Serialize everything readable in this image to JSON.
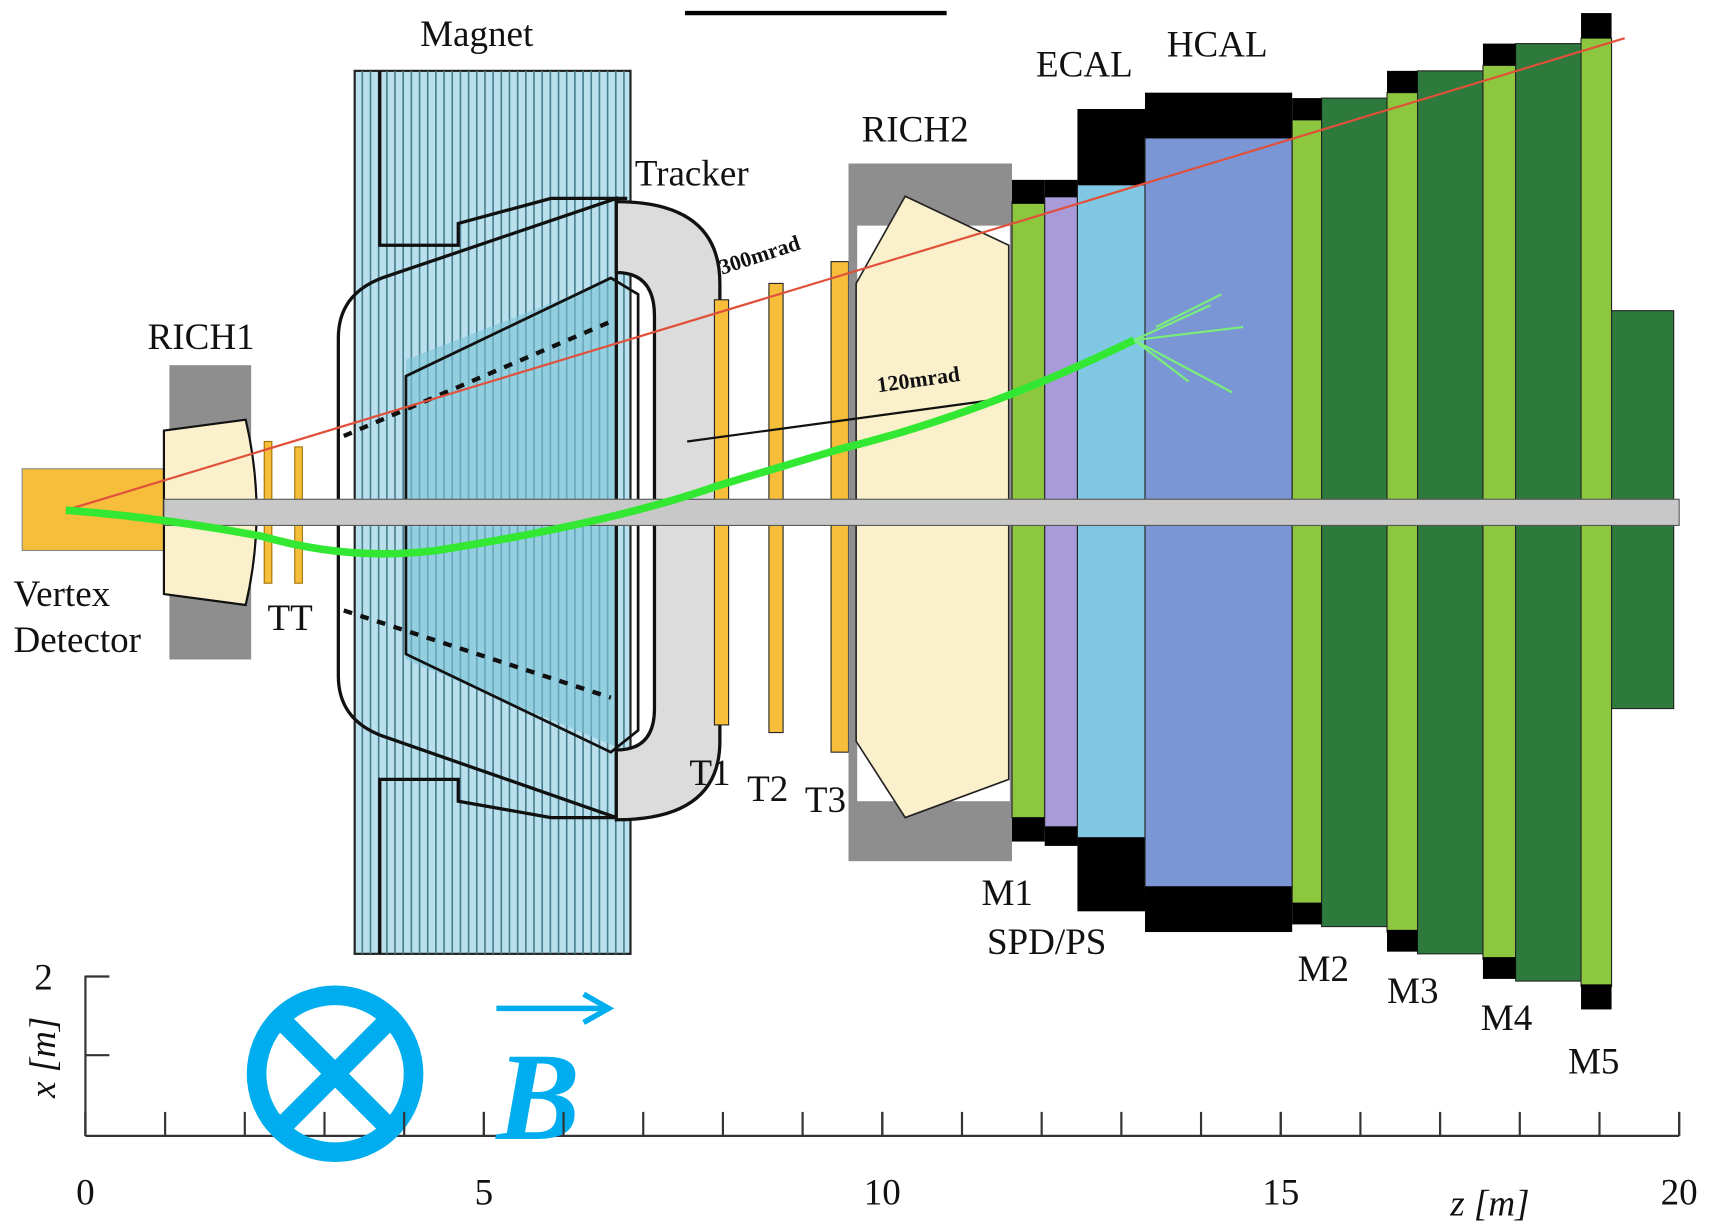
{
  "labels": {
    "magnet": "Magnet",
    "tracker": "Tracker",
    "rich1": "RICH1",
    "rich2": "RICH2",
    "ecal": "ECAL",
    "hcal": "HCAL",
    "angle_300": "300mrad",
    "angle_120": "120mrad",
    "vertex": "Vertex",
    "detector": "Detector",
    "tt": "TT",
    "t1": "T1",
    "t2": "T2",
    "t3": "T3",
    "m1": "M1",
    "spd_ps": "SPD/PS",
    "m2": "M2",
    "m3": "M3",
    "m4": "M4",
    "m5": "M5",
    "field": "B"
  },
  "axes": {
    "z_label": "z [m]",
    "z_ticks": [
      0,
      5,
      10,
      15,
      20
    ],
    "x_label": "x [m]",
    "x_ticks": [
      2
    ]
  }
}
